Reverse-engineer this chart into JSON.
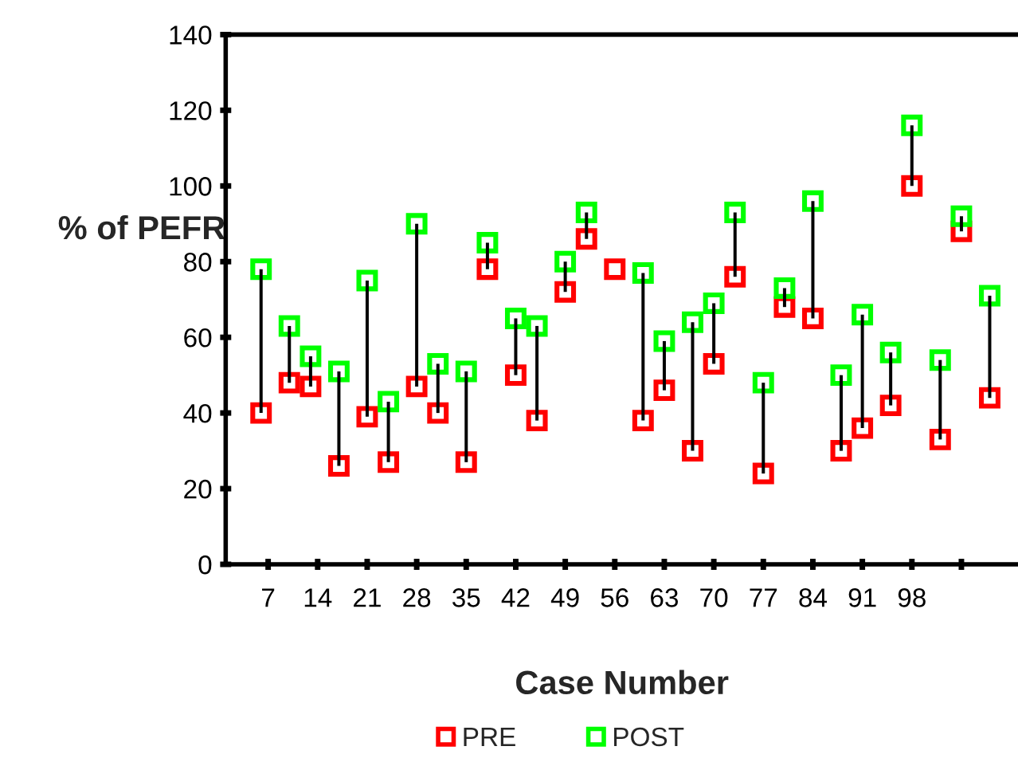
{
  "chart_data": {
    "type": "scatter",
    "xlabel": "Case Number",
    "ylabel": "% of PEFR",
    "x": [
      6,
      10,
      13,
      17,
      21,
      24,
      28,
      31,
      35,
      38,
      42,
      45,
      49,
      52,
      56,
      60,
      63,
      67,
      70,
      73,
      77,
      80,
      84,
      88,
      91,
      95,
      98,
      102,
      105,
      109
    ],
    "series": [
      {
        "type": "bar",
        "color": "#000000",
        "base": [
          40,
          48,
          47,
          26,
          39,
          27,
          47,
          40,
          27,
          78,
          50,
          38,
          72,
          86,
          null,
          38,
          46,
          30,
          53,
          76,
          24,
          68,
          65,
          30,
          36,
          42,
          100,
          33,
          88,
          44
        ],
        "values": [
          38,
          15,
          8,
          25,
          36,
          16,
          43,
          13,
          24,
          7,
          15,
          25,
          8,
          7,
          null,
          39,
          13,
          34,
          16,
          17,
          24,
          5,
          31,
          20,
          30,
          14,
          16,
          21,
          4,
          27
        ]
      },
      {
        "name": "PRE",
        "color": "#ff0000",
        "values": [
          40,
          48,
          47,
          26,
          39,
          27,
          47,
          40,
          27,
          78,
          50,
          38,
          72,
          86,
          78,
          38,
          46,
          30,
          53,
          76,
          24,
          68,
          65,
          30,
          36,
          42,
          100,
          33,
          88,
          44
        ]
      },
      {
        "name": "POST",
        "color": "#00ff00",
        "values": [
          78,
          63,
          55,
          51,
          75,
          43,
          90,
          53,
          51,
          85,
          65,
          63,
          80,
          93,
          null,
          77,
          59,
          64,
          69,
          93,
          48,
          73,
          96,
          50,
          66,
          56,
          116,
          54,
          92,
          71
        ]
      }
    ],
    "marker": "square",
    "legend": "bottom",
    "xlim": [
      1,
      113
    ],
    "xticks": [
      7,
      14,
      21,
      28,
      35,
      42,
      49,
      56,
      63,
      70,
      77,
      84,
      91,
      98,
      {
        "value": 105,
        "label": null
      }
    ],
    "ylim": [
      0,
      140
    ],
    "yticks": [
      0,
      20,
      40,
      60,
      80,
      100,
      120,
      140
    ],
    "grid": false
  }
}
